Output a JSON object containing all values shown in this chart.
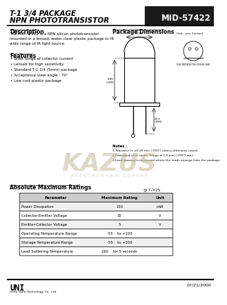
{
  "title_line1": "T-1 3/4 PACKAGE",
  "title_line2": "NPN PHOTOTRANSISTOR",
  "part_number": "MID-57422",
  "description_title": "Description",
  "description_text": "The MID-57422 is a NPN silicon phototransistor\nmounted in a lensed, water clear plastic package to fit\nwide range of IR light source.",
  "features_title": "Features",
  "features": [
    "Wide range of collector current",
    "Lensed for high sensitivity",
    "Standard T-1 3/4 (5mm) package",
    "Acceptance view angle : 70°",
    "Low cost plastic package"
  ],
  "pkg_dim_title": "Package Dimensions",
  "abs_max_title": "Absolute Maximum Ratings",
  "table_header": [
    "Parameter",
    "Maximum Rating",
    "Unit"
  ],
  "table_rows": [
    [
      "Power Dissipation",
      "150",
      "mW"
    ],
    [
      "Collector-Emitter Voltage",
      "30",
      "V"
    ],
    [
      "Emitter-Collector Voltage",
      "5",
      "V"
    ],
    [
      "Operating Temperature Range",
      "-55    to +100",
      ""
    ],
    [
      "Storage Temperature Range",
      "-55    to +100",
      ""
    ],
    [
      "Lead Soldering Temperature",
      "260    for 5 seconds",
      ""
    ]
  ],
  "temp_note": "@ Tₑ=25",
  "notes": [
    "1.Tolerance is ±0.25 mm (.010\") unless otherwise noted.",
    "2.Protruded resin under flange is 1.0 mm (.039\") max.",
    "3.Lead spacing is measured where the leads emerge from the package."
  ],
  "company_name": "UNI",
  "company_sub": "Unity Opto Technology Co., Ltd.",
  "date": "07/21/2000",
  "bg_color": "#ffffff",
  "watermark_color": "#c8b89a"
}
